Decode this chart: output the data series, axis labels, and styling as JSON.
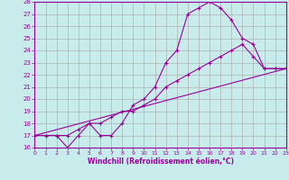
{
  "xlabel": "Windchill (Refroidissement éolien,°C)",
  "bg_color": "#c8ecec",
  "grid_color": "#b0b0b0",
  "line_color": "#990099",
  "xmin": 0,
  "xmax": 23,
  "ymin": 16,
  "ymax": 28,
  "series": [
    {
      "x": [
        0,
        1,
        2,
        3,
        4,
        5,
        6,
        7,
        8,
        9,
        10,
        11,
        12,
        13,
        14,
        15,
        16,
        17,
        18,
        19,
        20,
        21,
        22,
        23
      ],
      "y": [
        17,
        17,
        17,
        16,
        17,
        18,
        17,
        17,
        18,
        19.5,
        20,
        21,
        23,
        24,
        27,
        27.5,
        28,
        27.5,
        26.5,
        25,
        24.5,
        22.5,
        22.5,
        22.5
      ]
    },
    {
      "x": [
        0,
        1,
        2,
        3,
        4,
        5,
        6,
        7,
        8,
        9,
        10,
        11,
        12,
        13,
        14,
        15,
        16,
        17,
        18,
        19,
        20,
        21,
        22,
        23
      ],
      "y": [
        17,
        17,
        17,
        17,
        17.5,
        18,
        18,
        18.5,
        19,
        19,
        19.5,
        20,
        21,
        21.5,
        22,
        22.5,
        23,
        23.5,
        24,
        24.5,
        23.5,
        22.5,
        22.5,
        22.5
      ]
    },
    {
      "x": [
        0,
        23
      ],
      "y": [
        17,
        22.5
      ]
    }
  ]
}
